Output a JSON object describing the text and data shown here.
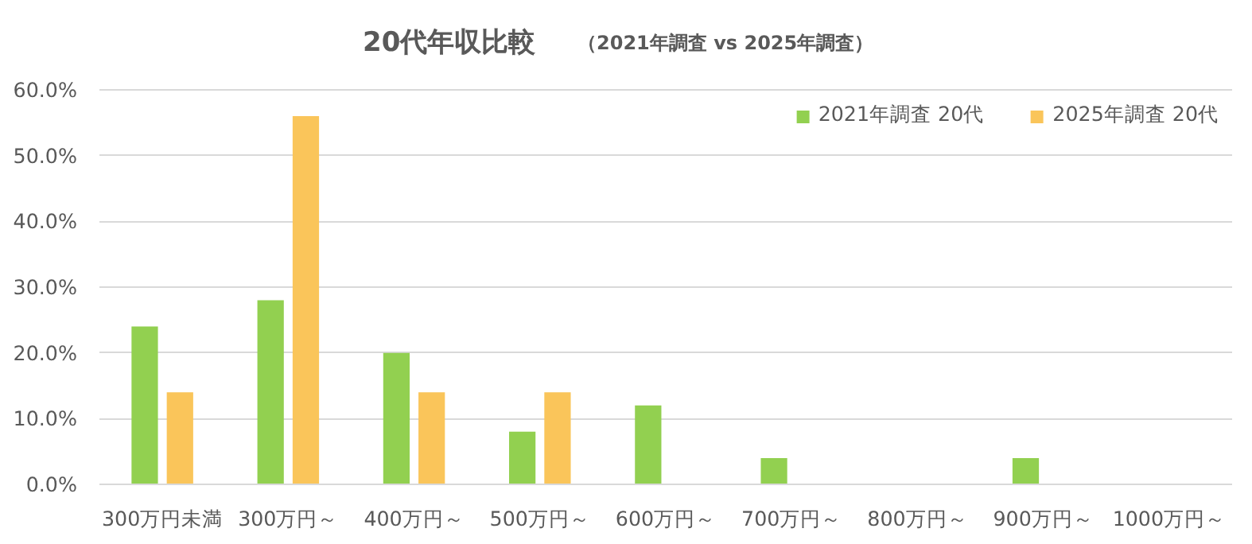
{
  "chart_data": {
    "type": "bar",
    "title": "20代年収比較",
    "subtitle": "（2021年調査 vs 2025年調査）",
    "categories": [
      "300万円未満",
      "300万円～",
      "400万円～",
      "500万円～",
      "600万円～",
      "700万円～",
      "800万円～",
      "900万円～",
      "1000万円～"
    ],
    "series": [
      {
        "name": "2021年調査 20代",
        "color": "#92d050",
        "values": [
          24,
          28,
          20,
          8,
          12,
          4,
          0,
          4,
          0
        ]
      },
      {
        "name": "2025年調査 20代",
        "color": "#fac55a",
        "values": [
          14,
          56,
          14,
          14,
          0,
          0,
          0,
          0,
          0
        ]
      }
    ],
    "ylim": [
      0,
      60
    ],
    "yticks": [
      {
        "value": 0,
        "label": "0.0%"
      },
      {
        "value": 10,
        "label": "10.0%"
      },
      {
        "value": 20,
        "label": "20.0%"
      },
      {
        "value": 30,
        "label": "30.0%"
      },
      {
        "value": 40,
        "label": "40.0%"
      },
      {
        "value": 50,
        "label": "50.0%"
      },
      {
        "value": 60,
        "label": "60.0%"
      }
    ],
    "grid": "y",
    "legend": "top right"
  }
}
